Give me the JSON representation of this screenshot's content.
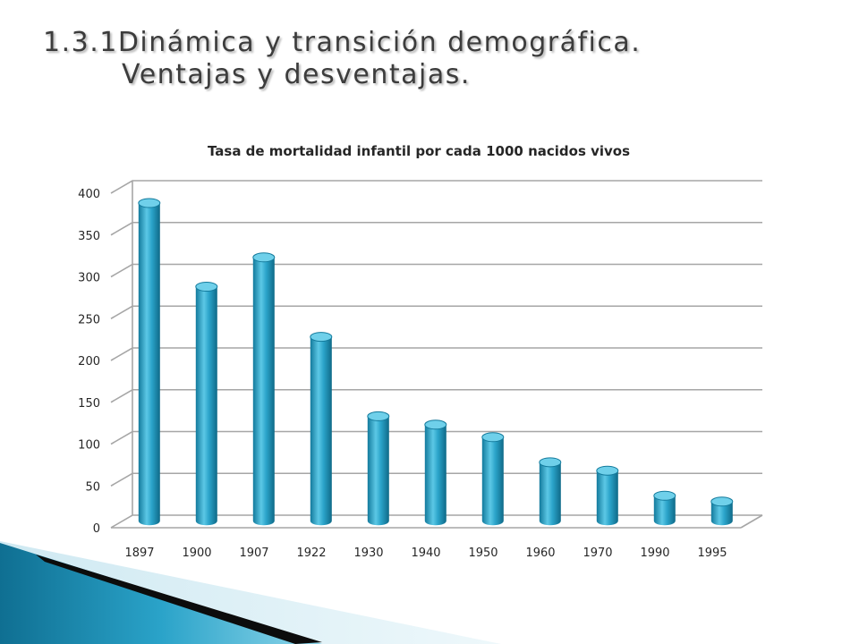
{
  "slide": {
    "title_line1": "1.3.1Dinámica y transición demográfica.",
    "title_line2": "Ventajas y desventajas."
  },
  "colors": {
    "bar": "#2aa3c9",
    "bar_dark": "#137a9c",
    "bar_light": "#6fd0ea",
    "grid": "#a6a6a6",
    "text": "#262626",
    "decor_blue": "#1b8fb5",
    "decor_dark": "#0c0c0c"
  },
  "chart_data": {
    "type": "bar",
    "title": "Tasa de mortalidad infantil por cada 1000 nacidos vivos",
    "categories": [
      "1897",
      "1900",
      "1907",
      "1922",
      "1930",
      "1940",
      "1950",
      "1960",
      "1970",
      "1990",
      "1995"
    ],
    "values": [
      380,
      280,
      315,
      220,
      125,
      115,
      100,
      70,
      60,
      30,
      23
    ],
    "ylim": [
      0,
      400
    ],
    "yticks": [
      0,
      50,
      100,
      150,
      200,
      250,
      300,
      350,
      400
    ],
    "grid": true,
    "legend": "none",
    "style": "3d-cylinder"
  }
}
